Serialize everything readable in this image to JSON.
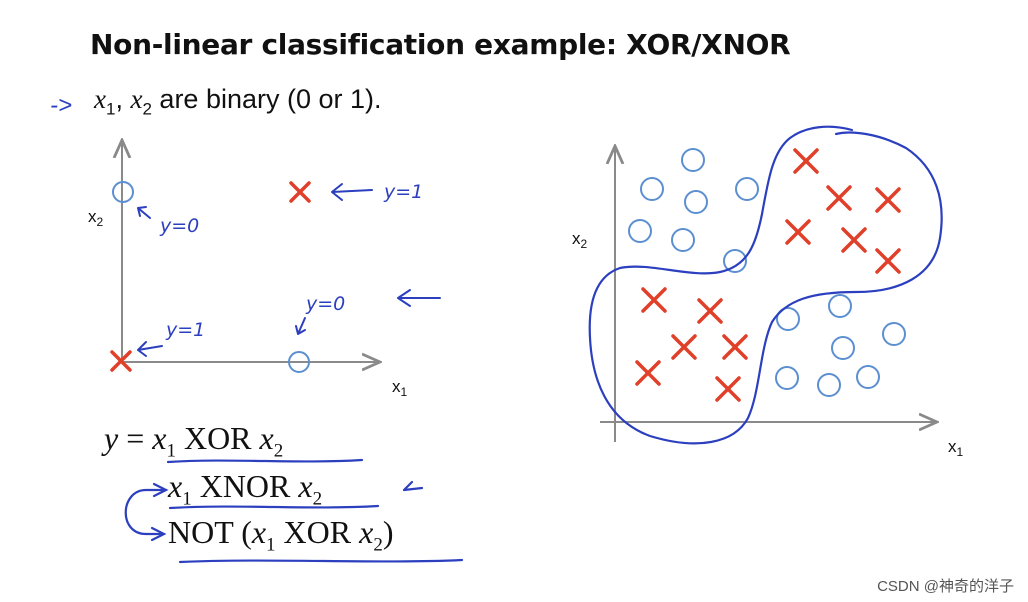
{
  "title": "Non-linear classification example: XOR/XNOR",
  "subtitle": {
    "x1": "x",
    "x2": "x",
    "sub1": "1",
    "sub2": "2",
    "text": " are binary (0 or 1)."
  },
  "left_plot": {
    "xlabel": "x",
    "ylabel": "x",
    "xsub": "1",
    "ysub": "2",
    "annotations": [
      "y=0",
      "y=1",
      "y=0",
      "y=1"
    ]
  },
  "right_plot": {
    "xlabel": "x",
    "ylabel": "x",
    "xsub": "1",
    "ysub": "2"
  },
  "equations": {
    "line1": {
      "y": "y",
      "eq": " = ",
      "x1": "x",
      "s1": "1",
      "op": " XOR ",
      "x2": "x",
      "s2": "2"
    },
    "line2": {
      "x1": "x",
      "s1": "1",
      "op": " XNOR ",
      "x2": "x",
      "s2": "2"
    },
    "line3": {
      "not": "NOT (",
      "x1": "x",
      "s1": "1",
      "op": " XOR ",
      "x2": "x",
      "s2": "2",
      "close": ")"
    }
  },
  "colors": {
    "circle": "#5b8fd0",
    "cross": "#e0402a",
    "ink": "#2b3fbf"
  },
  "watermark": "CSDN @神奇的洋子"
}
